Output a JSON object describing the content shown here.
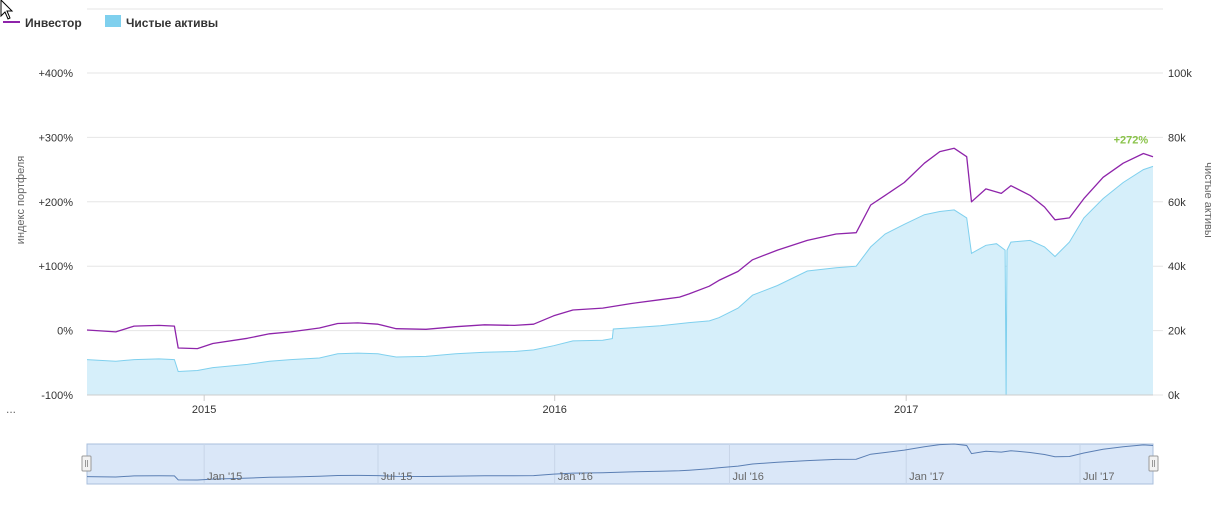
{
  "legend": {
    "investor_label": "Инвестор",
    "assets_label": "Чистые активы"
  },
  "misc": {
    "ellipsis": "..."
  },
  "colors": {
    "investor": "#8e24aa",
    "assets_fill": "#d6effa",
    "assets_line": "#7fd0ee",
    "annotation": "#8ac34a",
    "grid": "#e6e6e6",
    "navigator_fill": "#d3e3f7",
    "navigator_line": "#5b7fb4"
  },
  "chart_data": {
    "type": "area",
    "x_start": "2014-09-01",
    "x_end": "2017-09-15",
    "left_axis": {
      "title": "индекс портфеля",
      "ticks": [
        "+400%",
        "+300%",
        "+200%",
        "+100%",
        "0%",
        "-100%"
      ],
      "range": [
        -100,
        400
      ]
    },
    "right_axis": {
      "title": "чистые активы",
      "ticks": [
        "100k",
        "80k",
        "60k",
        "40k",
        "20k",
        "0k"
      ],
      "range": [
        0,
        100000
      ]
    },
    "x_ticks": [
      {
        "date": "2015-01-01",
        "label": "2015"
      },
      {
        "date": "2016-01-01",
        "label": "2016"
      },
      {
        "date": "2017-01-01",
        "label": "2017"
      }
    ],
    "annotation": {
      "text": "+272%",
      "date": "2017-09-10",
      "value": 272
    },
    "series": [
      {
        "name": "Инвестор",
        "axis": "left",
        "style": "line",
        "points": [
          [
            "2014-09-01",
            1
          ],
          [
            "2014-10-01",
            -2
          ],
          [
            "2014-10-20",
            7
          ],
          [
            "2014-11-15",
            8
          ],
          [
            "2014-12-01",
            7
          ],
          [
            "2014-12-05",
            -27
          ],
          [
            "2014-12-25",
            -28
          ],
          [
            "2015-01-10",
            -20
          ],
          [
            "2015-02-15",
            -12
          ],
          [
            "2015-03-10",
            -5
          ],
          [
            "2015-04-01",
            -2
          ],
          [
            "2015-05-01",
            4
          ],
          [
            "2015-05-20",
            11
          ],
          [
            "2015-06-10",
            12
          ],
          [
            "2015-07-01",
            10
          ],
          [
            "2015-07-20",
            3
          ],
          [
            "2015-08-20",
            2
          ],
          [
            "2015-09-20",
            6
          ],
          [
            "2015-10-20",
            9
          ],
          [
            "2015-11-20",
            8
          ],
          [
            "2015-12-10",
            10
          ],
          [
            "2015-12-31",
            23
          ],
          [
            "2016-01-20",
            32
          ],
          [
            "2016-02-20",
            35
          ],
          [
            "2016-03-20",
            42
          ],
          [
            "2016-04-20",
            48
          ],
          [
            "2016-05-10",
            52
          ],
          [
            "2016-05-20",
            57
          ],
          [
            "2016-06-10",
            69
          ],
          [
            "2016-06-20",
            78
          ],
          [
            "2016-07-10",
            92
          ],
          [
            "2016-07-25",
            110
          ],
          [
            "2016-08-20",
            125
          ],
          [
            "2016-09-20",
            140
          ],
          [
            "2016-10-20",
            150
          ],
          [
            "2016-11-10",
            152
          ],
          [
            "2016-11-25",
            195
          ],
          [
            "2016-12-10",
            210
          ],
          [
            "2016-12-30",
            230
          ],
          [
            "2017-01-20",
            260
          ],
          [
            "2017-02-05",
            278
          ],
          [
            "2017-02-20",
            283
          ],
          [
            "2017-03-05",
            270
          ],
          [
            "2017-03-10",
            200
          ],
          [
            "2017-03-25",
            220
          ],
          [
            "2017-04-10",
            213
          ],
          [
            "2017-04-20",
            225
          ],
          [
            "2017-05-10",
            210
          ],
          [
            "2017-05-25",
            192
          ],
          [
            "2017-06-05",
            172
          ],
          [
            "2017-06-20",
            175
          ],
          [
            "2017-07-05",
            205
          ],
          [
            "2017-07-25",
            238
          ],
          [
            "2017-08-15",
            260
          ],
          [
            "2017-09-05",
            275
          ],
          [
            "2017-09-15",
            270
          ]
        ]
      },
      {
        "name": "Чистые активы",
        "axis": "right",
        "style": "area",
        "points": [
          [
            "2014-09-01",
            11000
          ],
          [
            "2014-10-01",
            10500
          ],
          [
            "2014-10-20",
            11000
          ],
          [
            "2014-11-15",
            11200
          ],
          [
            "2014-12-01",
            11000
          ],
          [
            "2014-12-05",
            7300
          ],
          [
            "2014-12-25",
            7600
          ],
          [
            "2015-01-10",
            8500
          ],
          [
            "2015-02-15",
            9500
          ],
          [
            "2015-03-10",
            10500
          ],
          [
            "2015-04-01",
            11000
          ],
          [
            "2015-05-01",
            11500
          ],
          [
            "2015-05-20",
            12800
          ],
          [
            "2015-06-10",
            13000
          ],
          [
            "2015-07-01",
            12800
          ],
          [
            "2015-07-20",
            11800
          ],
          [
            "2015-08-20",
            12000
          ],
          [
            "2015-09-20",
            12800
          ],
          [
            "2015-10-20",
            13300
          ],
          [
            "2015-11-20",
            13500
          ],
          [
            "2015-12-10",
            14000
          ],
          [
            "2015-12-31",
            15300
          ],
          [
            "2016-01-20",
            16800
          ],
          [
            "2016-02-20",
            17000
          ],
          [
            "2016-03-01",
            17500
          ],
          [
            "2016-03-02",
            20500
          ],
          [
            "2016-04-20",
            21500
          ],
          [
            "2016-05-20",
            22500
          ],
          [
            "2016-06-10",
            23000
          ],
          [
            "2016-06-20",
            24000
          ],
          [
            "2016-07-10",
            27000
          ],
          [
            "2016-07-25",
            31000
          ],
          [
            "2016-08-20",
            34000
          ],
          [
            "2016-09-20",
            38500
          ],
          [
            "2016-10-20",
            39500
          ],
          [
            "2016-11-10",
            40000
          ],
          [
            "2016-11-25",
            46000
          ],
          [
            "2016-12-10",
            50000
          ],
          [
            "2016-12-30",
            53000
          ],
          [
            "2017-01-20",
            56000
          ],
          [
            "2017-02-05",
            57000
          ],
          [
            "2017-02-20",
            57500
          ],
          [
            "2017-03-05",
            55000
          ],
          [
            "2017-03-10",
            44000
          ],
          [
            "2017-03-25",
            46500
          ],
          [
            "2017-04-05",
            47000
          ],
          [
            "2017-04-14",
            45000
          ],
          [
            "2017-04-15",
            0
          ],
          [
            "2017-04-16",
            45000
          ],
          [
            "2017-04-20",
            47500
          ],
          [
            "2017-05-10",
            48000
          ],
          [
            "2017-05-25",
            46000
          ],
          [
            "2017-06-05",
            43000
          ],
          [
            "2017-06-20",
            47500
          ],
          [
            "2017-07-05",
            55000
          ],
          [
            "2017-07-25",
            61000
          ],
          [
            "2017-08-15",
            66000
          ],
          [
            "2017-09-05",
            70000
          ],
          [
            "2017-09-15",
            71000
          ]
        ]
      }
    ],
    "navigator": {
      "labels": [
        {
          "date": "2015-01-01",
          "label": "Jan '15"
        },
        {
          "date": "2015-07-01",
          "label": "Jul '15"
        },
        {
          "date": "2016-01-01",
          "label": "Jan '16"
        },
        {
          "date": "2016-07-01",
          "label": "Jul '16"
        },
        {
          "date": "2017-01-01",
          "label": "Jan '17"
        },
        {
          "date": "2017-07-01",
          "label": "Jul '17"
        }
      ]
    }
  }
}
